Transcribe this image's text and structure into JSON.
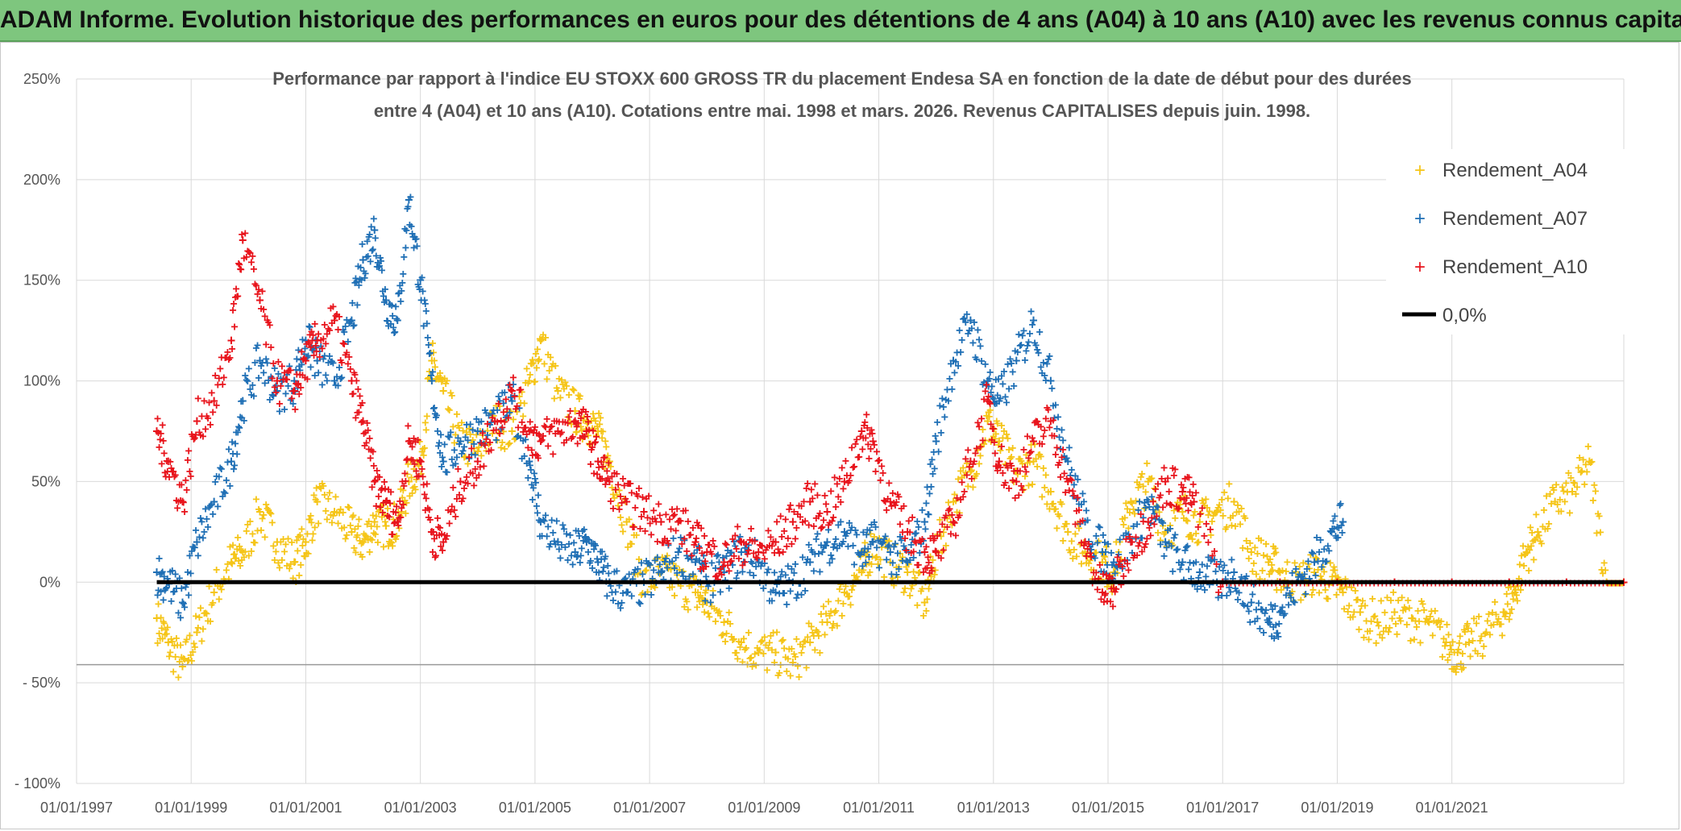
{
  "banner": {
    "title": "ADAM Informe. Evolution historique des performances en euros pour des détentions de 4 ans (A04) à 10 ans (A10) avec les revenus connus capitalisés"
  },
  "chart_data": {
    "type": "scatter",
    "title_line1": "Performance par rapport à l'indice EU STOXX 600 GROSS TR  du placement Endesa SA en fonction de la date de début pour des durées",
    "title_line2": "entre 4 (A04) et 10 ans (A10). Cotations entre mai. 1998 et mars. 2026. Revenus CAPITALISES depuis juin. 1998.",
    "xlabel": "",
    "ylabel": "",
    "x_range_years": [
      1997.0,
      2024.0
    ],
    "y_range_percent": [
      -100,
      250
    ],
    "y_ticks": [
      250,
      200,
      150,
      100,
      50,
      0,
      -50,
      -100
    ],
    "y_tick_labels": [
      "250%",
      "200%",
      "150%",
      "100%",
      "50%",
      "0%",
      "- 50%",
      "- 100%"
    ],
    "x_ticks": [
      1997,
      1999,
      2001,
      2003,
      2005,
      2007,
      2009,
      2011,
      2013,
      2015,
      2017,
      2019,
      2021
    ],
    "x_tick_labels": [
      "01/01/1997",
      "01/01/1999",
      "01/01/2001",
      "01/01/2003",
      "01/01/2005",
      "01/01/2007",
      "01/01/2009",
      "01/01/2011",
      "01/01/2013",
      "01/01/2015",
      "01/01/2017",
      "01/01/2019",
      "01/01/2021"
    ],
    "legend_position": "top-right",
    "series": [
      {
        "name": "Rendement_A04",
        "color": "#f5c518",
        "marker": "plus",
        "x": [
          1998.4,
          1998.6,
          1998.85,
          1999.1,
          1999.4,
          1999.7,
          1999.9,
          2000.2,
          2000.5,
          2000.8,
          2001.0,
          2001.2,
          2001.5,
          2001.8,
          2002.0,
          2002.2,
          2002.4,
          2002.6,
          2002.8,
          2003.0,
          2003.2,
          2003.4,
          2003.7,
          2004.0,
          2004.3,
          2004.6,
          2004.9,
          2005.1,
          2005.4,
          2005.7,
          2005.9,
          2006.1,
          2006.3,
          2006.6,
          2006.9,
          2007.2,
          2007.5,
          2007.8,
          2008.0,
          2008.3,
          2008.6,
          2008.9,
          2009.2,
          2009.5,
          2009.8,
          2010.1,
          2010.4,
          2010.7,
          2010.9,
          2011.2,
          2011.5,
          2011.8,
          2012.0,
          2012.3,
          2012.6,
          2012.9,
          2013.1,
          2013.4,
          2013.7,
          2014.0,
          2014.3,
          2014.6,
          2014.9,
          2015.1,
          2015.4,
          2015.7,
          2016.0,
          2016.3,
          2016.6,
          2016.9,
          2017.2,
          2017.5,
          2017.8,
          2018.0,
          2018.3,
          2018.6,
          2018.9,
          2019.1,
          2019.4,
          2019.7,
          2020.0,
          2020.3,
          2020.6,
          2020.9,
          2021.1,
          2021.3,
          2021.6,
          2021.9,
          2022.1,
          2022.3,
          2022.5,
          2022.8,
          2023.1,
          2023.4,
          2023.7,
          2024.0
        ],
        "y": [
          -18,
          -30,
          -42,
          -25,
          -5,
          10,
          15,
          35,
          20,
          10,
          20,
          40,
          35,
          25,
          20,
          30,
          28,
          30,
          50,
          60,
          110,
          95,
          70,
          65,
          80,
          75,
          100,
          120,
          95,
          85,
          80,
          75,
          60,
          30,
          0,
          5,
          0,
          -5,
          -10,
          -20,
          -30,
          -35,
          -35,
          -40,
          -30,
          -20,
          -5,
          5,
          20,
          10,
          5,
          -10,
          15,
          40,
          55,
          80,
          70,
          55,
          60,
          45,
          25,
          15,
          10,
          5,
          40,
          50,
          25,
          35,
          30,
          35,
          40,
          15,
          10,
          5,
          0,
          5,
          0,
          -5,
          -15,
          -20,
          -15,
          -18,
          -20,
          -30,
          -35,
          -30,
          -25,
          -15,
          -5,
          15,
          25,
          40,
          45,
          60,
          0,
          0
        ]
      },
      {
        "name": "Rendement_A07",
        "color": "#1f6fb5",
        "marker": "plus",
        "x": [
          1998.4,
          1998.6,
          1998.85,
          1999.1,
          1999.4,
          1999.7,
          1999.9,
          2000.2,
          2000.5,
          2000.8,
          2001.0,
          2001.2,
          2001.5,
          2001.8,
          2002.0,
          2002.2,
          2002.4,
          2002.6,
          2002.8,
          2003.0,
          2003.2,
          2003.4,
          2003.7,
          2004.0,
          2004.3,
          2004.6,
          2004.9,
          2005.1,
          2005.4,
          2005.7,
          2005.9,
          2006.1,
          2006.3,
          2006.6,
          2006.9,
          2007.2,
          2007.5,
          2007.8,
          2008.0,
          2008.3,
          2008.6,
          2008.9,
          2009.2,
          2009.5,
          2009.8,
          2010.1,
          2010.4,
          2010.7,
          2010.9,
          2011.2,
          2011.5,
          2011.8,
          2012.0,
          2012.3,
          2012.6,
          2012.9,
          2013.1,
          2013.4,
          2013.7,
          2014.0,
          2014.3,
          2014.6,
          2014.9,
          2015.1,
          2015.4,
          2015.7,
          2016.0,
          2016.3,
          2016.6,
          2016.9,
          2017.2,
          2017.5,
          2017.8,
          2018.0,
          2018.3,
          2018.6,
          2018.9,
          2019.1
        ],
        "y": [
          5,
          0,
          -10,
          20,
          40,
          60,
          90,
          110,
          95,
          100,
          120,
          110,
          100,
          130,
          160,
          175,
          140,
          130,
          190,
          150,
          100,
          60,
          70,
          75,
          80,
          90,
          60,
          30,
          20,
          15,
          20,
          10,
          0,
          -5,
          0,
          5,
          15,
          10,
          0,
          5,
          15,
          10,
          -5,
          0,
          10,
          20,
          25,
          15,
          20,
          15,
          10,
          30,
          70,
          110,
          130,
          100,
          90,
          110,
          130,
          100,
          60,
          30,
          15,
          10,
          20,
          40,
          20,
          10,
          5,
          0,
          5,
          -10,
          -20,
          -15,
          0,
          10,
          25,
          30
        ]
      },
      {
        "name": "Rendement_A10",
        "color": "#e8141c",
        "marker": "plus",
        "x": [
          1998.4,
          1998.6,
          1998.85,
          1999.1,
          1999.4,
          1999.7,
          1999.9,
          2000.2,
          2000.5,
          2000.8,
          2001.0,
          2001.2,
          2001.5,
          2001.8,
          2002.0,
          2002.2,
          2002.4,
          2002.6,
          2002.8,
          2003.0,
          2003.2,
          2003.4,
          2003.7,
          2004.0,
          2004.3,
          2004.6,
          2004.9,
          2005.1,
          2005.4,
          2005.7,
          2005.9,
          2006.1,
          2006.3,
          2006.6,
          2006.9,
          2007.2,
          2007.5,
          2007.8,
          2008.0,
          2008.3,
          2008.6,
          2008.9,
          2009.2,
          2009.5,
          2009.8,
          2010.1,
          2010.4,
          2010.7,
          2010.9,
          2011.2,
          2011.5,
          2011.8,
          2012.0,
          2012.3,
          2012.6,
          2012.9,
          2013.1,
          2013.4,
          2013.7,
          2014.0,
          2014.3,
          2014.6,
          2014.9,
          2015.1,
          2015.4,
          2015.7,
          2016.0,
          2016.3,
          2016.5,
          2017.0,
          2018.0,
          2019.0,
          2020.0,
          2021.0,
          2022.0,
          2023.0,
          2024.0
        ],
        "y": [
          75,
          60,
          40,
          80,
          90,
          120,
          170,
          140,
          100,
          95,
          110,
          120,
          130,
          100,
          80,
          50,
          40,
          30,
          70,
          60,
          25,
          20,
          50,
          60,
          80,
          95,
          75,
          70,
          75,
          80,
          75,
          60,
          50,
          40,
          35,
          30,
          30,
          20,
          15,
          10,
          20,
          15,
          20,
          30,
          40,
          35,
          50,
          75,
          70,
          40,
          25,
          15,
          15,
          30,
          60,
          90,
          60,
          50,
          70,
          80,
          50,
          20,
          -5,
          -3,
          20,
          30,
          50,
          45,
          40,
          0,
          0,
          0,
          0,
          0,
          0,
          0,
          0
        ]
      }
    ],
    "reference_line": {
      "name": "0,0%",
      "value": 0,
      "color": "#000000"
    }
  }
}
